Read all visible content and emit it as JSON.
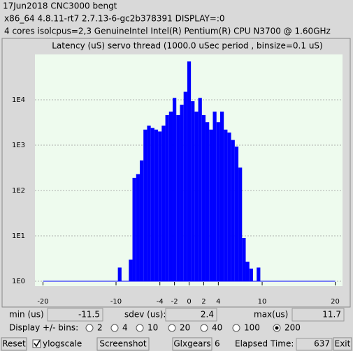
{
  "header": {
    "lines": [
      "17Jun2018 CNC3000 bengt",
      "x86_64  4.8.11-rt7  2.7.13-6-gc2b378391  DISPLAY=:0",
      "4 cores  isolcpus=2,3  GenuineIntel  Intel(R) Pentium(R) CPU N3700 @ 1.60GHz"
    ]
  },
  "chart_data": {
    "type": "bar",
    "title": "Latency (uS) servo thread (1000.0 uSec period , binsize=0.1 uS)",
    "x": [
      -9.5,
      -8,
      -7.5,
      -7,
      -6.5,
      -6,
      -5.5,
      -5,
      -4.5,
      -4,
      -3.5,
      -3,
      -2.5,
      -2,
      -1.5,
      -1,
      -0.5,
      0,
      0.5,
      1,
      1.5,
      2,
      2.5,
      3,
      3.5,
      4,
      4.5,
      5,
      5.5,
      6,
      6.5,
      7,
      7.5,
      8,
      8.5,
      9.5
    ],
    "values": [
      2,
      3,
      190,
      230,
      460,
      2200,
      2700,
      2400,
      2200,
      2000,
      2700,
      4600,
      5500,
      11000,
      4600,
      7800,
      15000,
      70000,
      9300,
      5500,
      11000,
      4600,
      3200,
      2200,
      5500,
      3200,
      5500,
      2200,
      1900,
      1300,
      930,
      320,
      9,
      2.7,
      1.9,
      2
    ],
    "color": "#0000ff",
    "background": "#eefbee",
    "log_y": true,
    "grid": true,
    "xlim": [
      -21.1,
      21
    ],
    "xticks": [
      -20,
      -10,
      -4,
      -2,
      0,
      2,
      4,
      10,
      20
    ],
    "ylim": [
      1,
      100000
    ],
    "yticks": [
      {
        "value": 1,
        "label": "1E0"
      },
      {
        "value": 10,
        "label": "1E1"
      },
      {
        "value": 100,
        "label": "1E2"
      },
      {
        "value": 1000,
        "label": "1E3"
      },
      {
        "value": 10000,
        "label": "1E4"
      }
    ]
  },
  "stats": {
    "min_label": "min (us)",
    "min_value": -11.5,
    "sdev_label": "sdev (us):",
    "sdev_value": 2.4,
    "max_label": "max(us)",
    "max_value": 11.7
  },
  "bins": {
    "label": "Display +/- bins:",
    "options": [
      2,
      4,
      10,
      20,
      40,
      100,
      200
    ],
    "selected": 200
  },
  "footer": {
    "reset": "Reset",
    "ylogscale": "ylogscale",
    "screenshot": "Screenshot",
    "glxgears": "Glxgears",
    "glxgears_count": 6,
    "elapsed_label": "Elapsed Time:",
    "elapsed_value": 637,
    "exit": "Exit"
  }
}
